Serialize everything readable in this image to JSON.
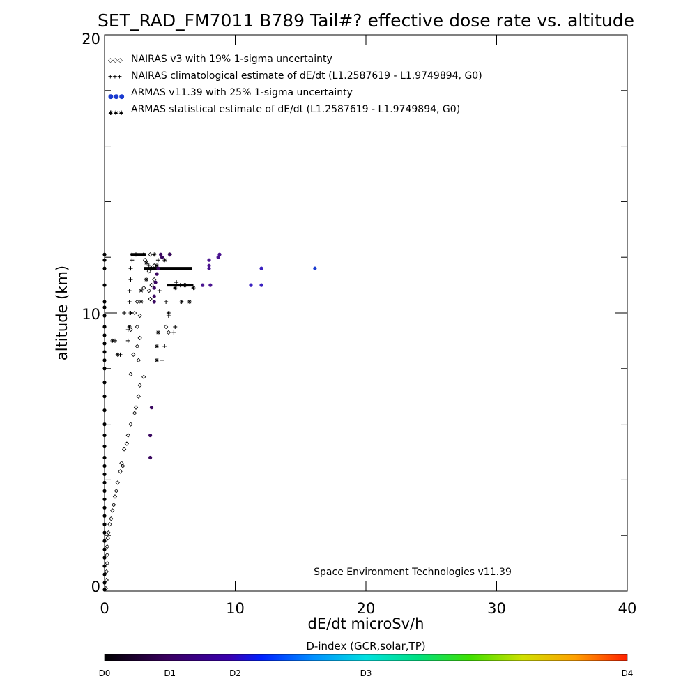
{
  "chart_data": {
    "type": "scatter",
    "title": "SET_RAD_FM7011  B789 Tail#? effective dose rate vs. altitude",
    "xlabel": "dE/dt microSv/h",
    "ylabel": "altitude (km)",
    "xlim": [
      0,
      40
    ],
    "ylim": [
      0,
      20
    ],
    "x_ticks": [
      "0",
      "10",
      "20",
      "30",
      "40"
    ],
    "y_ticks": [
      "0",
      "10",
      "20"
    ],
    "legend_placement": "top-left",
    "legend": [
      {
        "symbols": "◇◇◇",
        "label": "NAIRAS v3 with 19% 1-sigma uncertainty"
      },
      {
        "symbols": "+++",
        "label": "NAIRAS climatological estimate of dE/dt (L1.2587619 - L1.9749894, G0)"
      },
      {
        "symbols": "●●●",
        "label": "ARMAS v11.39 with 25% 1-sigma uncertainty"
      },
      {
        "symbols": "✱✱✱",
        "label": "ARMAS statistical estimate of dE/dt (L1.2587619 - L1.9749894, G0)"
      }
    ],
    "annotation": "Space Environment Technologies v11.39",
    "colorbar": {
      "title": "D-index (GCR,solar,TP)",
      "labels": [
        {
          "text": "D0",
          "value": 0
        },
        {
          "text": "D1",
          "value": 0.5
        },
        {
          "text": "D2",
          "value": 1.0
        },
        {
          "text": "D3",
          "value": 2.0
        },
        {
          "text": "D4",
          "value": 4.0
        }
      ]
    },
    "series": [
      {
        "marker": "diamond",
        "points": [
          [
            0.1,
            0.1
          ],
          [
            0.15,
            0.4
          ],
          [
            0.15,
            0.7
          ],
          [
            0.2,
            1.0
          ],
          [
            0.2,
            1.3
          ],
          [
            0.2,
            1.6
          ],
          [
            0.25,
            1.9
          ],
          [
            0.3,
            2.1
          ],
          [
            0.4,
            2.4
          ],
          [
            0.5,
            2.6
          ],
          [
            0.6,
            2.9
          ],
          [
            0.7,
            3.1
          ],
          [
            0.8,
            3.4
          ],
          [
            0.9,
            3.6
          ],
          [
            1.0,
            3.9
          ],
          [
            1.2,
            4.3
          ],
          [
            1.4,
            4.5
          ],
          [
            1.3,
            4.6
          ],
          [
            1.5,
            5.1
          ],
          [
            1.7,
            5.3
          ],
          [
            1.8,
            5.6
          ],
          [
            2.0,
            6.0
          ],
          [
            2.3,
            6.4
          ],
          [
            2.4,
            6.6
          ],
          [
            2.6,
            7.0
          ],
          [
            2.7,
            7.4
          ],
          [
            3.0,
            7.7
          ],
          [
            2.0,
            7.8
          ],
          [
            2.6,
            8.3
          ],
          [
            2.2,
            8.5
          ],
          [
            2.5,
            8.8
          ],
          [
            2.7,
            9.1
          ],
          [
            2.0,
            9.4
          ],
          [
            2.5,
            9.5
          ],
          [
            2.3,
            10.0
          ],
          [
            2.7,
            9.9
          ],
          [
            2.5,
            10.4
          ],
          [
            3.5,
            10.5
          ],
          [
            3.0,
            10.9
          ],
          [
            3.4,
            10.8
          ],
          [
            3.6,
            11.0
          ],
          [
            3.8,
            11.2
          ],
          [
            3.4,
            11.5
          ],
          [
            3.8,
            11.7
          ],
          [
            3.1,
            11.9
          ],
          [
            3.0,
            12.1
          ],
          [
            3.5,
            12.1
          ],
          [
            4.7,
            9.5
          ],
          [
            4.9,
            9.3
          ]
        ]
      },
      {
        "marker": "plus",
        "points": [
          [
            0.8,
            9.0
          ],
          [
            1.2,
            8.5
          ],
          [
            1.8,
            9.0
          ],
          [
            1.8,
            9.4
          ],
          [
            1.5,
            10.0
          ],
          [
            1.9,
            10.4
          ],
          [
            1.9,
            10.8
          ],
          [
            2.0,
            11.2
          ],
          [
            2.0,
            11.6
          ],
          [
            2.1,
            11.9
          ],
          [
            2.1,
            12.1
          ],
          [
            4.4,
            8.3
          ],
          [
            4.6,
            8.8
          ],
          [
            5.3,
            9.3
          ],
          [
            5.4,
            9.5
          ],
          [
            4.9,
            9.9
          ],
          [
            4.7,
            10.4
          ],
          [
            4.2,
            10.8
          ],
          [
            5.8,
            11.0
          ],
          [
            5.5,
            11.1
          ],
          [
            6.1,
            11.0
          ],
          [
            2.4,
            12.1
          ],
          [
            3.4,
            11.7
          ],
          [
            4.1,
            11.9
          ]
        ]
      },
      {
        "marker": "asterisk",
        "points": [
          [
            0.6,
            9.0
          ],
          [
            1.0,
            8.5
          ],
          [
            1.9,
            9.5
          ],
          [
            2.0,
            10.0
          ],
          [
            2.8,
            10.4
          ],
          [
            2.8,
            10.8
          ],
          [
            3.2,
            11.2
          ],
          [
            3.6,
            11.6
          ],
          [
            3.2,
            11.8
          ],
          [
            4.0,
            8.3
          ],
          [
            4.0,
            8.8
          ],
          [
            4.1,
            9.3
          ],
          [
            4.9,
            10.0
          ],
          [
            5.9,
            10.4
          ],
          [
            5.4,
            10.9
          ],
          [
            6.5,
            10.4
          ],
          [
            6.8,
            10.9
          ],
          [
            6.2,
            11.0
          ],
          [
            4.6,
            11.9
          ],
          [
            5.0,
            12.1
          ],
          [
            3.8,
            12.1
          ],
          [
            4.0,
            11.7
          ]
        ]
      },
      {
        "marker": "dot",
        "points": [
          [
            3.5,
            4.8
          ],
          [
            3.5,
            5.6
          ],
          [
            3.6,
            6.6
          ],
          [
            3.8,
            10.4
          ],
          [
            3.8,
            10.6
          ],
          [
            3.8,
            10.9
          ],
          [
            3.9,
            11.1
          ],
          [
            4.0,
            11.4
          ],
          [
            4.1,
            11.6
          ],
          [
            4.4,
            12.0
          ],
          [
            4.3,
            12.1
          ],
          [
            5.0,
            12.1
          ],
          [
            7.5,
            11.0
          ],
          [
            8.1,
            11.0
          ],
          [
            8.0,
            11.6
          ],
          [
            8.0,
            11.7
          ],
          [
            8.0,
            11.9
          ],
          [
            8.7,
            12.0
          ],
          [
            8.8,
            12.1
          ],
          [
            11.2,
            11.0
          ],
          [
            12.0,
            11.0
          ],
          [
            12.0,
            11.6
          ],
          [
            16.1,
            11.6
          ],
          [
            0.0,
            0.05
          ],
          [
            0.0,
            0.3
          ],
          [
            0.0,
            0.6
          ],
          [
            0.0,
            0.9
          ],
          [
            0.0,
            1.2
          ],
          [
            0.0,
            1.5
          ],
          [
            0.0,
            1.8
          ],
          [
            0.0,
            2.1
          ],
          [
            0.0,
            2.4
          ],
          [
            0.0,
            2.7
          ],
          [
            0.0,
            3.0
          ],
          [
            0.0,
            3.3
          ],
          [
            0.0,
            3.6
          ],
          [
            0.0,
            3.9
          ],
          [
            0.0,
            4.2
          ],
          [
            0.0,
            4.5
          ],
          [
            0.0,
            4.8
          ],
          [
            0.0,
            5.2
          ],
          [
            0.0,
            5.6
          ],
          [
            0.0,
            6.0
          ],
          [
            0.0,
            6.5
          ],
          [
            0.0,
            7.0
          ],
          [
            0.0,
            7.5
          ],
          [
            0.0,
            8.0
          ],
          [
            0.0,
            8.3
          ],
          [
            0.0,
            8.6
          ],
          [
            0.0,
            8.9
          ],
          [
            0.0,
            9.2
          ],
          [
            0.0,
            9.5
          ],
          [
            0.0,
            9.9
          ],
          [
            0.0,
            10.2
          ],
          [
            0.0,
            10.4
          ],
          [
            0.0,
            11.0
          ],
          [
            0.0,
            11.6
          ],
          [
            0.0,
            11.9
          ],
          [
            0.0,
            12.1
          ]
        ]
      }
    ],
    "dense_rows": [
      {
        "y": 11.6,
        "x_range": [
          3.0,
          6.7
        ]
      },
      {
        "y": 11.0,
        "x_range": [
          4.8,
          6.8
        ]
      },
      {
        "y": 12.1,
        "x_range": [
          2.0,
          3.2
        ]
      }
    ]
  }
}
